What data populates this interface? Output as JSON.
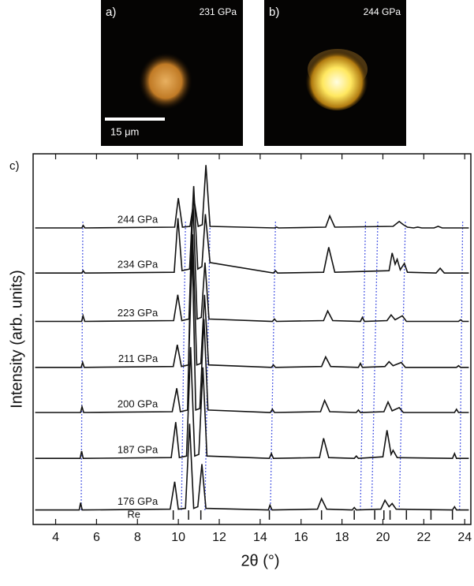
{
  "images": [
    {
      "label": "a)",
      "pressure": "231 GPa",
      "scale_bar": "15 μm"
    },
    {
      "label": "b)",
      "pressure": "244 GPa"
    }
  ],
  "chart_data": {
    "type": "line",
    "panel_label": "c)",
    "x_label": "2θ (°)",
    "y_label": "Intensity (arb. units)",
    "xlim": [
      2.9,
      24.3
    ],
    "xticks": [
      4,
      6,
      8,
      10,
      12,
      14,
      16,
      18,
      20,
      22,
      24
    ],
    "ylim": [
      0,
      46
    ],
    "reference": {
      "name": "Re",
      "positions": [
        9.75,
        10.5,
        11.1,
        14.45,
        17.0,
        18.6,
        19.6,
        20.05,
        20.35,
        21.15,
        22.35,
        23.4
      ]
    },
    "guides": [
      [
        5.25,
        5.33
      ],
      [
        10.15,
        10.35
      ],
      [
        11.3,
        11.55
      ],
      [
        14.5,
        14.75
      ],
      [
        18.9,
        19.15
      ],
      [
        19.45,
        19.75
      ],
      [
        20.8,
        21.1
      ],
      [
        23.75,
        23.9
      ]
    ],
    "guide_color": "#2233dd",
    "series": [
      {
        "name": "176 GPa",
        "color": "#111111",
        "x": [
          3.0,
          5.15,
          5.22,
          5.3,
          9.6,
          9.82,
          10.0,
          10.35,
          10.55,
          10.75,
          10.95,
          11.15,
          11.35,
          14.4,
          14.48,
          14.58,
          16.8,
          17.0,
          17.25,
          18.5,
          18.6,
          18.7,
          19.9,
          20.1,
          20.3,
          20.45,
          20.65,
          23.4,
          23.5,
          23.6,
          24.2
        ],
        "values": [
          1.8,
          1.8,
          2.7,
          1.8,
          1.9,
          5.3,
          1.9,
          2.0,
          12.5,
          2.0,
          2.2,
          7.5,
          2.0,
          1.8,
          2.4,
          1.8,
          1.9,
          3.2,
          1.9,
          1.8,
          2.1,
          1.8,
          1.9,
          3.0,
          2.2,
          2.6,
          1.9,
          1.8,
          2.2,
          1.8,
          1.8
        ]
      },
      {
        "name": "187 GPa",
        "color": "#111111",
        "x": [
          3.0,
          5.2,
          5.27,
          5.35,
          9.65,
          9.87,
          10.05,
          10.4,
          10.6,
          10.8,
          11.0,
          11.2,
          11.4,
          14.45,
          14.55,
          14.65,
          16.9,
          17.1,
          17.35,
          18.6,
          18.7,
          18.8,
          20.0,
          20.2,
          20.4,
          20.5,
          20.7,
          23.4,
          23.5,
          23.6,
          24.2
        ],
        "values": [
          8.2,
          8.2,
          9.1,
          8.2,
          8.3,
          12.7,
          8.3,
          8.5,
          22.0,
          8.5,
          8.7,
          19.5,
          8.5,
          8.2,
          8.8,
          8.2,
          8.3,
          10.7,
          8.3,
          8.2,
          8.5,
          8.2,
          8.4,
          11.7,
          8.7,
          9.2,
          8.3,
          8.2,
          8.8,
          8.2,
          8.2
        ]
      },
      {
        "name": "200 GPa",
        "color": "#111111",
        "x": [
          3.0,
          5.22,
          5.29,
          5.37,
          9.7,
          9.92,
          10.1,
          10.45,
          10.65,
          10.85,
          11.05,
          11.25,
          11.45,
          14.5,
          14.6,
          14.7,
          16.95,
          17.15,
          17.4,
          18.7,
          18.8,
          18.9,
          20.05,
          20.25,
          20.45,
          20.8,
          21.0,
          23.5,
          23.6,
          23.7,
          24.2
        ],
        "values": [
          13.9,
          13.9,
          14.6,
          13.9,
          14.0,
          16.9,
          14.0,
          14.2,
          37.5,
          14.2,
          14.4,
          25.5,
          14.2,
          13.9,
          14.3,
          13.9,
          14.0,
          15.4,
          14.0,
          13.9,
          14.2,
          13.9,
          14.0,
          15.2,
          14.1,
          14.5,
          13.9,
          13.9,
          14.3,
          13.9,
          13.9
        ]
      },
      {
        "name": "211 GPa",
        "color": "#111111",
        "x": [
          3.0,
          5.25,
          5.32,
          5.4,
          9.75,
          9.95,
          10.15,
          10.5,
          10.7,
          10.9,
          11.1,
          11.28,
          11.48,
          14.55,
          14.65,
          14.75,
          17.0,
          17.2,
          17.45,
          18.8,
          18.9,
          19.0,
          20.1,
          20.3,
          20.5,
          20.9,
          21.1,
          23.6,
          23.7,
          23.8,
          24.2
        ],
        "values": [
          19.5,
          19.5,
          20.1,
          19.5,
          19.6,
          22.3,
          19.6,
          19.8,
          36.0,
          19.8,
          20.0,
          28.5,
          19.8,
          19.5,
          19.8,
          19.5,
          19.6,
          20.8,
          19.6,
          19.5,
          20.0,
          19.5,
          19.6,
          20.2,
          19.7,
          20.1,
          19.5,
          19.5,
          19.7,
          19.5,
          19.5
        ]
      },
      {
        "name": "223 GPa",
        "color": "#111111",
        "x": [
          3.0,
          5.27,
          5.34,
          5.42,
          9.77,
          9.97,
          10.17,
          10.52,
          10.72,
          10.92,
          11.12,
          11.3,
          11.5,
          14.6,
          14.7,
          14.8,
          17.1,
          17.3,
          17.55,
          18.9,
          19.0,
          19.1,
          20.2,
          20.4,
          20.6,
          20.95,
          21.15,
          23.7,
          23.8,
          23.9,
          24.2
        ],
        "values": [
          25.2,
          25.2,
          25.9,
          25.2,
          25.3,
          28.5,
          25.3,
          25.5,
          40.0,
          25.5,
          25.7,
          32.5,
          25.5,
          25.2,
          25.5,
          25.2,
          25.3,
          26.5,
          25.3,
          25.2,
          25.7,
          25.2,
          25.3,
          26.0,
          25.4,
          25.9,
          25.2,
          25.2,
          25.4,
          25.2,
          25.2
        ]
      },
      {
        "name": "234 GPa",
        "color": "#111111",
        "x": [
          3.0,
          5.28,
          5.35,
          5.43,
          9.8,
          9.98,
          10.18,
          10.55,
          10.75,
          10.95,
          11.15,
          11.32,
          11.55,
          14.65,
          14.75,
          14.85,
          17.1,
          17.35,
          17.65,
          20.3,
          20.45,
          20.6,
          20.7,
          20.85,
          21.05,
          21.2,
          22.6,
          22.8,
          23.0,
          23.9,
          24.2
        ],
        "values": [
          31.2,
          31.2,
          31.5,
          31.2,
          31.3,
          38.0,
          31.5,
          31.7,
          42.0,
          31.7,
          32.0,
          38.5,
          32.5,
          31.2,
          31.5,
          31.2,
          31.3,
          34.4,
          31.3,
          31.5,
          33.7,
          32.3,
          32.9,
          31.6,
          32.4,
          31.3,
          31.2,
          31.8,
          31.2,
          31.2,
          31.2
        ]
      },
      {
        "name": "244 GPa",
        "color": "#111111",
        "x": [
          3.0,
          5.28,
          5.35,
          5.43,
          9.82,
          10.0,
          10.2,
          10.57,
          10.77,
          10.97,
          11.17,
          11.35,
          11.55,
          14.7,
          14.8,
          14.9,
          17.2,
          17.4,
          17.65,
          20.5,
          20.8,
          21.0,
          21.2,
          21.5,
          21.7,
          21.9,
          22.5,
          22.7,
          22.9,
          23.9,
          24.2
        ],
        "values": [
          36.8,
          36.8,
          37.1,
          36.8,
          36.9,
          40.5,
          36.9,
          37.0,
          40.3,
          37.0,
          37.2,
          44.6,
          37.0,
          36.8,
          36.9,
          36.8,
          36.9,
          38.3,
          36.9,
          37.0,
          37.6,
          37.2,
          36.9,
          36.8,
          36.9,
          36.8,
          36.8,
          37.0,
          36.8,
          36.8,
          36.8
        ]
      }
    ]
  }
}
